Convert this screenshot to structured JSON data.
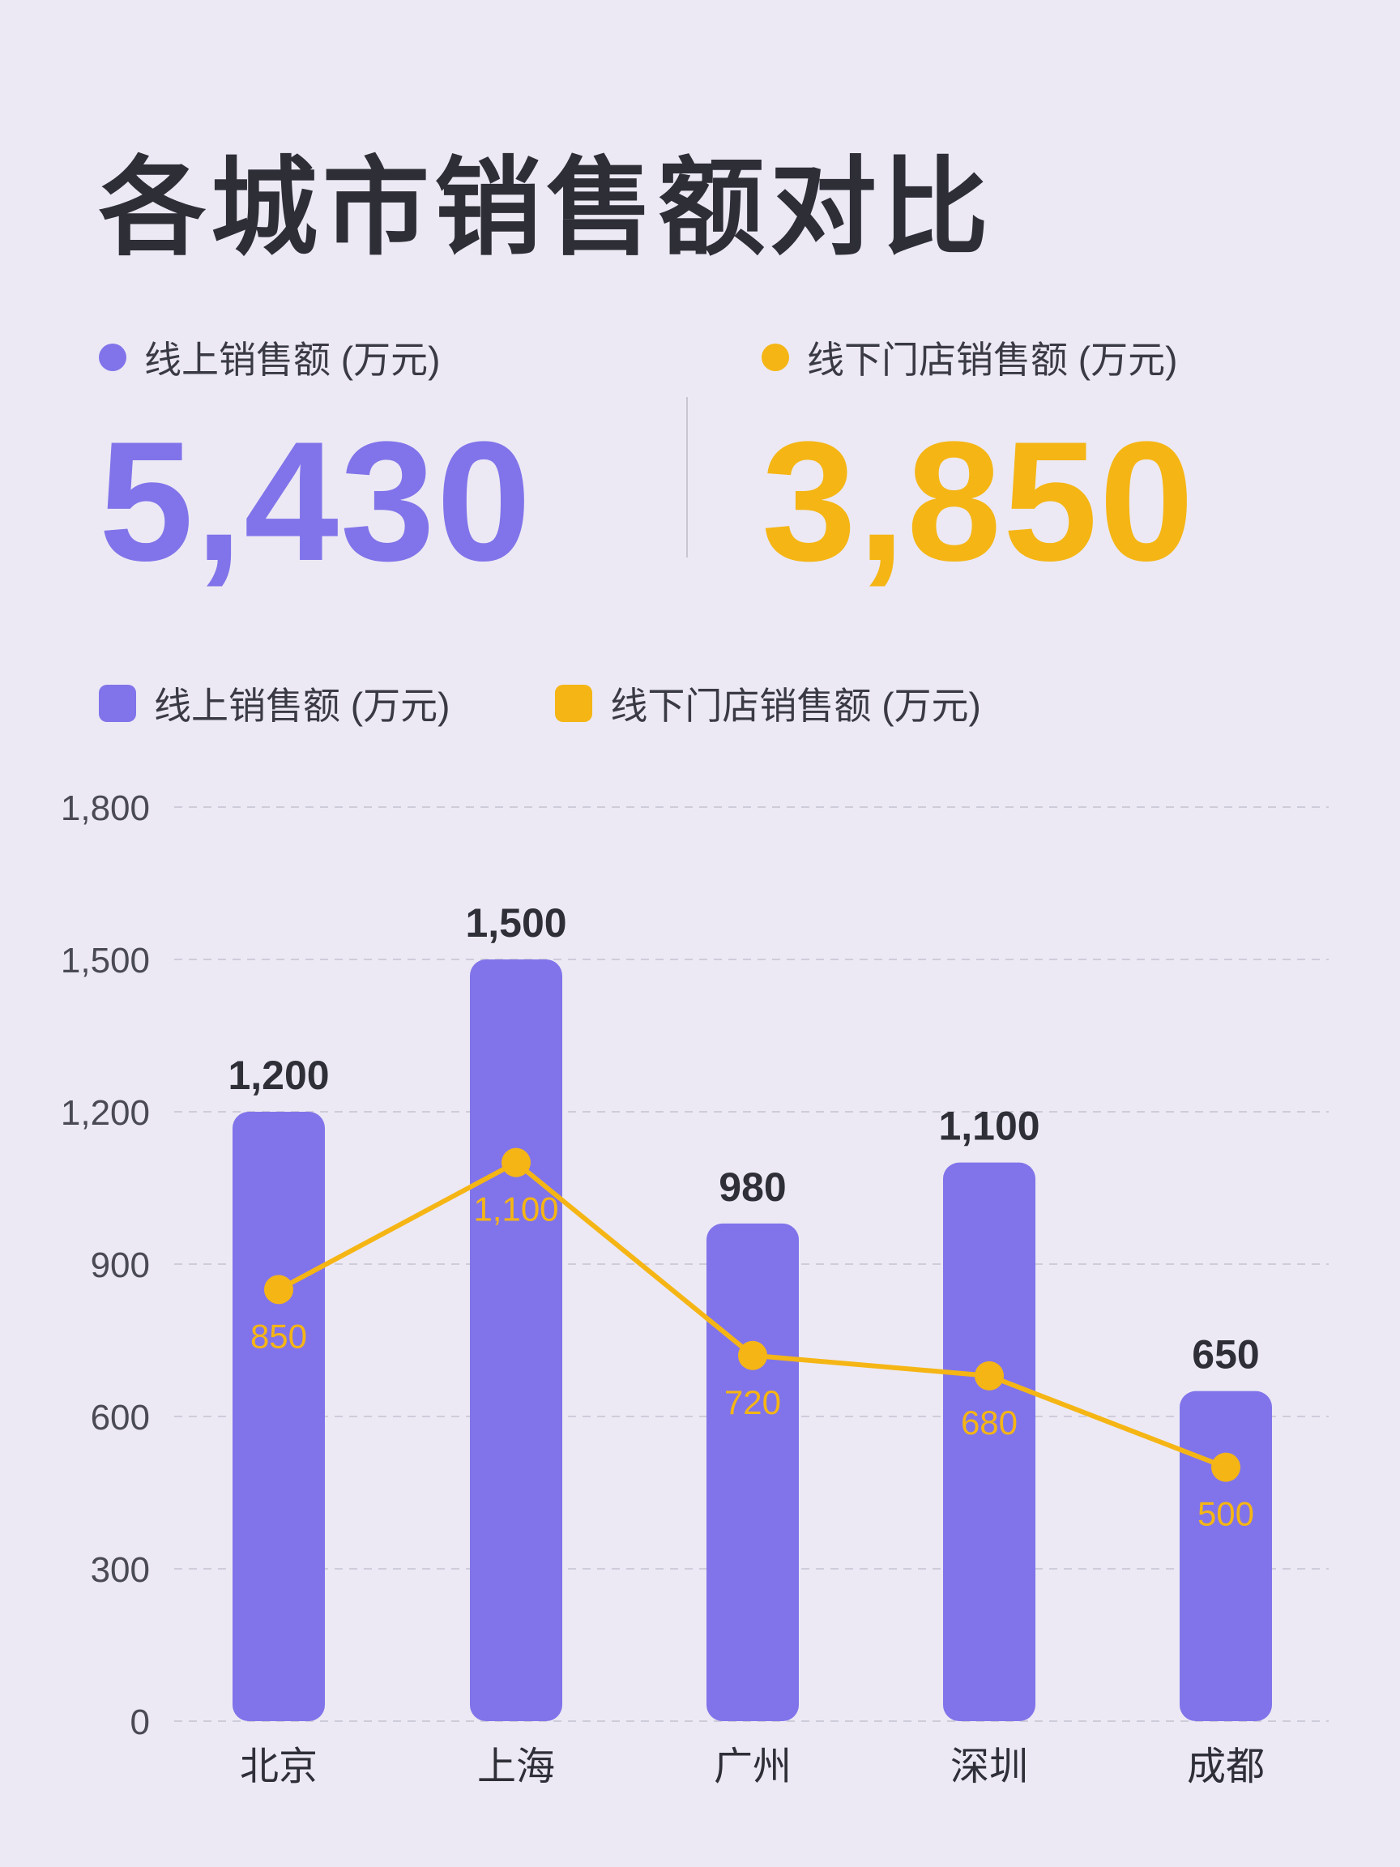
{
  "title": "各城市销售额对比",
  "colors": {
    "online": "#8174EA",
    "offline": "#F5B514",
    "text": "#2F2F38",
    "background": "#ECE9F4"
  },
  "kpis": [
    {
      "label": "线上销售额 (万元)",
      "value": "5,430"
    },
    {
      "label": "线下门店销售额 (万元)",
      "value": "3,850"
    }
  ],
  "legend": [
    {
      "label": "线上销售额 (万元)"
    },
    {
      "label": "线下门店销售额 (万元)"
    }
  ],
  "chart_data": {
    "type": "bar",
    "categories": [
      "北京",
      "上海",
      "广州",
      "深圳",
      "成都"
    ],
    "series": [
      {
        "name": "线上销售额 (万元)",
        "type": "bar",
        "values": [
          1200,
          1500,
          980,
          1100,
          650
        ],
        "labels": [
          "1,200",
          "1,500",
          "980",
          "1,100",
          "650"
        ]
      },
      {
        "name": "线下门店销售额 (万元)",
        "type": "line",
        "values": [
          850,
          1100,
          720,
          680,
          500
        ],
        "labels": [
          "850",
          "1,100",
          "720",
          "680",
          "500"
        ]
      }
    ],
    "ylim": [
      0,
      1800
    ],
    "yticks": [
      0,
      300,
      600,
      900,
      1200,
      1500,
      1800
    ],
    "ytick_labels": [
      "0",
      "300",
      "600",
      "900",
      "1,200",
      "1,500",
      "1,800"
    ],
    "grid": true,
    "legend_position": "top-left"
  }
}
